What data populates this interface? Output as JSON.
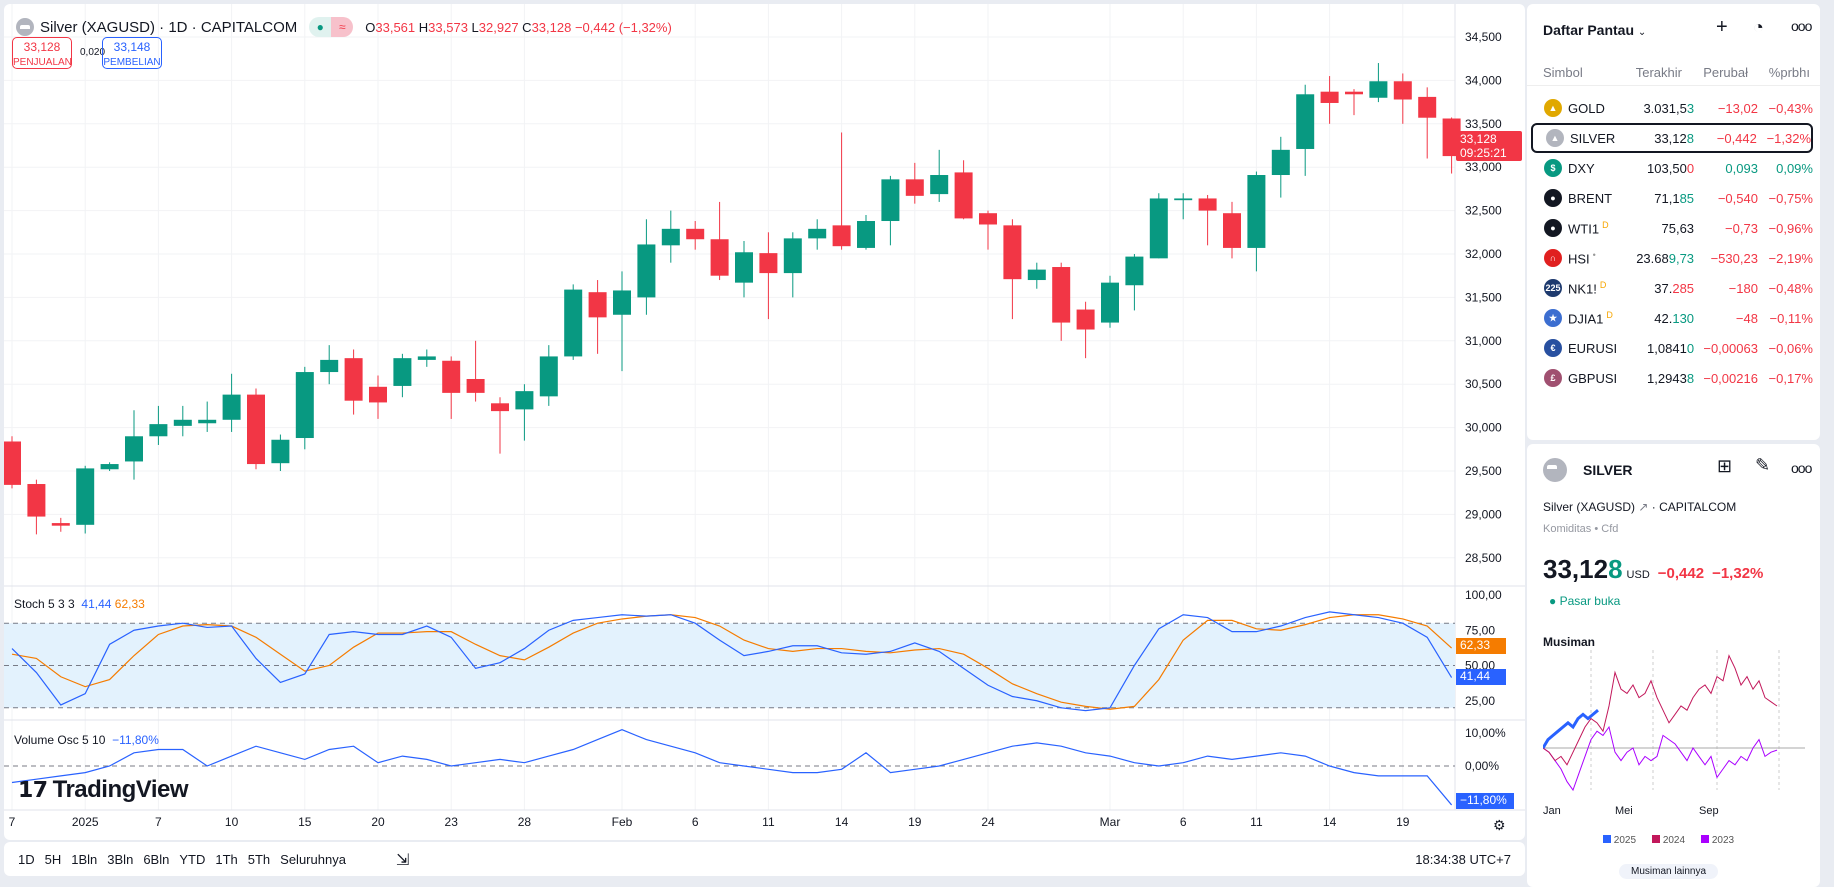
{
  "header": {
    "title": "Silver (XAGUSD) · 1D · CAPITALCOM",
    "open_label": "O",
    "open": "33,561",
    "high_label": "H",
    "high": "33,573",
    "low_label": "L",
    "low": "32,927",
    "close_label": "C",
    "close": "33,128",
    "change": "−0,442 (−1,32%)",
    "sell_price": "33,128",
    "sell_label": "PENJUALAN",
    "spread": "0,020",
    "buy_price": "33,148",
    "buy_label": "PEMBELIAN"
  },
  "price_axis": {
    "ticks": [
      "34,500",
      "34,000",
      "33,500",
      "33,000",
      "32,500",
      "32,000",
      "31,500",
      "31,000",
      "30,500",
      "30,000",
      "29,500",
      "29,000",
      "28,500"
    ],
    "tick_values": [
      34500,
      34000,
      33500,
      33000,
      32500,
      32000,
      31500,
      31000,
      30500,
      30000,
      29500,
      29000,
      28500
    ],
    "last_price": "33,128",
    "countdown": "09:25:21"
  },
  "colors": {
    "up": "#089981",
    "down": "#f23645",
    "k": "#2962ff",
    "d": "#f57c00",
    "band": "#e3f2fd"
  },
  "chart_data": {
    "type": "candlestick",
    "ylim": [
      28400,
      34600
    ],
    "ohlc": [
      [
        29840,
        29900,
        29300,
        29340
      ],
      [
        29350,
        29400,
        28770,
        28975
      ],
      [
        28900,
        28960,
        28800,
        28870
      ],
      [
        28880,
        29560,
        28780,
        29530
      ],
      [
        29520,
        29600,
        29500,
        29580
      ],
      [
        29610,
        30200,
        29400,
        29900
      ],
      [
        29900,
        30250,
        29800,
        30040
      ],
      [
        30020,
        30250,
        29900,
        30090
      ],
      [
        30050,
        30300,
        29950,
        30090
      ],
      [
        30090,
        30620,
        29950,
        30380
      ],
      [
        30380,
        30450,
        29520,
        29580
      ],
      [
        29590,
        29920,
        29500,
        29860
      ],
      [
        29880,
        30700,
        29750,
        30640
      ],
      [
        30640,
        30950,
        30500,
        30780
      ],
      [
        30800,
        30900,
        30150,
        30310
      ],
      [
        30470,
        30600,
        30100,
        30290
      ],
      [
        30480,
        30850,
        30350,
        30800
      ],
      [
        30780,
        30900,
        30700,
        30820
      ],
      [
        30770,
        30820,
        30100,
        30400
      ],
      [
        30560,
        31000,
        30300,
        30400
      ],
      [
        30280,
        30350,
        29700,
        30190
      ],
      [
        30210,
        30500,
        29850,
        30420
      ],
      [
        30360,
        30950,
        30250,
        30820
      ],
      [
        30820,
        31650,
        30780,
        31590
      ],
      [
        31560,
        31700,
        30850,
        31270
      ],
      [
        31300,
        31800,
        30650,
        31580
      ],
      [
        31500,
        32400,
        31300,
        32110
      ],
      [
        32100,
        32500,
        31900,
        32290
      ],
      [
        32290,
        32380,
        32050,
        32170
      ],
      [
        32170,
        32600,
        31700,
        31750
      ],
      [
        31670,
        32150,
        31500,
        32020
      ],
      [
        32010,
        32250,
        31250,
        31780
      ],
      [
        31780,
        32250,
        31500,
        32180
      ],
      [
        32180,
        32400,
        32050,
        32290
      ],
      [
        32330,
        33400,
        32050,
        32090
      ],
      [
        32070,
        32450,
        32050,
        32380
      ],
      [
        32380,
        32900,
        32100,
        32860
      ],
      [
        32860,
        33050,
        32580,
        32670
      ],
      [
        32690,
        33200,
        32600,
        32910
      ],
      [
        32940,
        33080,
        32400,
        32410
      ],
      [
        32470,
        32500,
        32050,
        32340
      ],
      [
        32330,
        32400,
        31250,
        31710
      ],
      [
        31700,
        31900,
        31600,
        31820
      ],
      [
        31850,
        31900,
        31000,
        31210
      ],
      [
        31360,
        31450,
        30800,
        31130
      ],
      [
        31210,
        31750,
        31150,
        31670
      ],
      [
        31640,
        32000,
        31350,
        31970
      ],
      [
        31950,
        32700,
        31950,
        32640
      ],
      [
        32620,
        32700,
        32400,
        32640
      ],
      [
        32640,
        32680,
        32100,
        32500
      ],
      [
        32470,
        32600,
        31950,
        32070
      ],
      [
        32070,
        32950,
        31800,
        32910
      ],
      [
        32910,
        33350,
        32650,
        33200
      ],
      [
        33210,
        33950,
        32900,
        33840
      ],
      [
        33870,
        34050,
        33500,
        33740
      ],
      [
        33870,
        33900,
        33600,
        33840
      ],
      [
        33800,
        34200,
        33750,
        33990
      ],
      [
        33990,
        34080,
        33500,
        33780
      ],
      [
        33810,
        33920,
        33100,
        33570
      ],
      [
        33561,
        33573,
        32927,
        33128
      ]
    ],
    "x_labels": [
      {
        "i": 0,
        "t": "7"
      },
      {
        "i": 3,
        "t": "2025"
      },
      {
        "i": 6,
        "t": "7"
      },
      {
        "i": 9,
        "t": "10"
      },
      {
        "i": 12,
        "t": "15"
      },
      {
        "i": 15,
        "t": "20"
      },
      {
        "i": 18,
        "t": "23"
      },
      {
        "i": 21,
        "t": "28"
      },
      {
        "i": 25,
        "t": "Feb"
      },
      {
        "i": 28,
        "t": "6"
      },
      {
        "i": 31,
        "t": "11"
      },
      {
        "i": 34,
        "t": "14"
      },
      {
        "i": 37,
        "t": "19"
      },
      {
        "i": 40,
        "t": "24"
      },
      {
        "i": 45,
        "t": "Mar"
      },
      {
        "i": 48,
        "t": "6"
      },
      {
        "i": 51,
        "t": "11"
      },
      {
        "i": 54,
        "t": "14"
      },
      {
        "i": 57,
        "t": "19"
      }
    ],
    "stoch": {
      "title": "Stoch 5 3 3",
      "k_value": "41,44",
      "d_value": "62,33",
      "ticks": [
        "100,00",
        "75,00",
        "50,00",
        "25,00"
      ],
      "tick_values": [
        100,
        75,
        50,
        25
      ],
      "k": [
        62,
        45,
        22,
        30,
        65,
        75,
        78,
        80,
        77,
        78,
        55,
        38,
        44,
        72,
        74,
        72,
        72,
        78,
        70,
        48,
        52,
        62,
        75,
        82,
        84,
        86,
        85,
        86,
        80,
        68,
        57,
        60,
        64,
        64,
        59,
        58,
        60,
        66,
        60,
        48,
        36,
        28,
        25,
        20,
        18,
        20,
        50,
        76,
        86,
        84,
        74,
        74,
        78,
        84,
        88,
        86,
        84,
        80,
        70,
        41.44
      ],
      "d": [
        58,
        55,
        42,
        35,
        40,
        57,
        72,
        78,
        79,
        78,
        70,
        58,
        46,
        50,
        63,
        73,
        73,
        74,
        74,
        65,
        57,
        54,
        63,
        73,
        80,
        83,
        85,
        86,
        84,
        78,
        68,
        62,
        60,
        62,
        62,
        60,
        59,
        61,
        62,
        58,
        48,
        37,
        30,
        24,
        21,
        19,
        21,
        40,
        68,
        82,
        82,
        76,
        75,
        79,
        84,
        86,
        86,
        83,
        78,
        62.33
      ]
    },
    "volosc": {
      "title": "Volume Osc 5 10",
      "value": "−11,80%",
      "ticks": [
        "10,00%",
        "0,00%"
      ],
      "tick_values": [
        10,
        0
      ],
      "values": [
        -5,
        -4,
        -3,
        -2,
        0,
        4,
        5,
        5,
        0,
        3,
        6,
        4,
        2,
        5,
        6,
        1,
        3,
        2,
        0,
        1,
        2,
        1,
        3,
        5,
        8,
        11,
        8,
        6,
        4,
        1,
        0,
        -1,
        -2,
        -2,
        -1,
        4,
        -2,
        -1,
        0,
        2,
        4,
        6,
        7,
        6,
        4,
        3,
        1,
        0,
        1,
        3,
        2,
        3,
        4,
        3,
        0,
        -2,
        -3,
        -3,
        -3,
        -11.8
      ]
    }
  },
  "watermark": "TradingView",
  "toolbar": {
    "ranges": [
      "1D",
      "5H",
      "1Bln",
      "3Bln",
      "6Bln",
      "YTD",
      "1Th",
      "5Th",
      "Seluruhnya"
    ],
    "clock": "18:34:38 UTC+7"
  },
  "watchlist": {
    "title": "Daftar Pantau",
    "columns": [
      "Simbol",
      "Terakhir",
      "Perubał",
      "%prbhı"
    ],
    "rows": [
      {
        "sym": "GOLD",
        "icon": "gold-icon",
        "color": "#e0a800",
        "glyph": "▲",
        "last": "3.031,5",
        "tail": "3",
        "tail_dir": "up",
        "chg": "−13,02",
        "pct": "−0,43%",
        "dir": "down",
        "badge": ""
      },
      {
        "sym": "SILVER",
        "icon": "silver-icon",
        "color": "#b2b5be",
        "glyph": "▲",
        "last": "33,12",
        "tail": "8",
        "tail_dir": "up",
        "chg": "−0,442",
        "pct": "−1,32%",
        "dir": "down",
        "badge": "",
        "selected": true
      },
      {
        "sym": "DXY",
        "icon": "dollar-icon",
        "color": "#089981",
        "glyph": "$",
        "last": "103,50",
        "tail": "0",
        "tail_dir": "down",
        "chg": "0,093",
        "pct": "0,09%",
        "dir": "up",
        "badge": ""
      },
      {
        "sym": "BRENT",
        "icon": "oil-drop-icon",
        "color": "#131722",
        "glyph": "●",
        "last": "71,1",
        "tail": "85",
        "tail_dir": "up",
        "chg": "−0,540",
        "pct": "−0,75%",
        "dir": "down",
        "badge": ""
      },
      {
        "sym": "WTI1",
        "icon": "oil-drop-icon",
        "color": "#131722",
        "glyph": "●",
        "last": "75,63",
        "tail": "",
        "tail_dir": "",
        "chg": "−0,73",
        "pct": "−0,96%",
        "dir": "down",
        "badge": "D"
      },
      {
        "sym": "HSI",
        "icon": "hsi-icon",
        "color": "#e02020",
        "glyph": "∩",
        "last": "23.68",
        "tail": "9,73",
        "tail_dir": "up",
        "chg": "−530,23",
        "pct": "−2,19%",
        "dir": "down",
        "badge": "•"
      },
      {
        "sym": "NK1!",
        "icon": "nikkei-icon",
        "color": "#1e3a6e",
        "glyph": "225",
        "last": "37.",
        "tail": "285",
        "tail_dir": "down",
        "chg": "−180",
        "pct": "−0,48%",
        "dir": "down",
        "badge": "D"
      },
      {
        "sym": "DJIA1",
        "icon": "us-flag-icon",
        "color": "#3c6ed0",
        "glyph": "★",
        "last": "42.",
        "tail": "130",
        "tail_dir": "up",
        "chg": "−48",
        "pct": "−0,11%",
        "dir": "down",
        "badge": "D"
      },
      {
        "sym": "EURUSI",
        "icon": "eurusd-flag-icon",
        "color": "#2850a0",
        "glyph": "€",
        "last": "1,0841",
        "tail": "0",
        "tail_dir": "up",
        "chg": "−0,00063",
        "pct": "−0,06%",
        "dir": "down",
        "badge": ""
      },
      {
        "sym": "GBPUSI",
        "icon": "gbpusd-flag-icon",
        "color": "#a05070",
        "glyph": "£",
        "last": "1,2943",
        "tail": "8",
        "tail_dir": "up",
        "chg": "−0,00216",
        "pct": "−0,17%",
        "dir": "down",
        "badge": ""
      }
    ]
  },
  "details": {
    "symbol": "SILVER",
    "name": "Silver (XAGUSD)",
    "exchange": "CAPITALCOM",
    "category": "Komiditas",
    "type": "Cfd",
    "price_main": "33,12",
    "price_tail": "8",
    "currency": "USD",
    "change": "−0,442",
    "change_pct": "−1,32%",
    "market_status": "Pasar buka",
    "seasonal_title": "Musiman",
    "seasonal_months": [
      "Jan",
      "Mei",
      "Sep"
    ],
    "seasonal": [
      {
        "name": "2025",
        "color": "#2962ff",
        "values": [
          0,
          2,
          3,
          4,
          5,
          6,
          5,
          7,
          8,
          7,
          8,
          9
        ]
      },
      {
        "name": "2024",
        "color": "#c2185b",
        "values": [
          0,
          -1,
          -3,
          -2,
          -4,
          -1,
          2,
          5,
          7,
          6,
          4,
          10,
          18,
          14,
          13,
          15,
          12,
          13,
          16,
          12,
          9,
          6,
          8,
          10,
          9,
          12,
          14,
          15,
          13,
          17,
          16,
          22,
          19,
          15,
          17,
          14,
          16,
          12,
          11,
          10
        ]
      },
      {
        "name": "2023",
        "color": "#aa00ff",
        "values": [
          0,
          -1,
          -3,
          -5,
          -8,
          -10,
          -6,
          -2,
          2,
          4,
          3,
          5,
          -1,
          -3,
          -1,
          0,
          -4,
          -2,
          -3,
          -2,
          3,
          2,
          1,
          -1,
          -3,
          0,
          -2,
          -4,
          -2,
          -7,
          -5,
          -3,
          -4,
          -2,
          -3,
          0,
          2,
          -2,
          -1,
          -0.5
        ]
      }
    ],
    "more_label": "Musiman lainnya"
  }
}
